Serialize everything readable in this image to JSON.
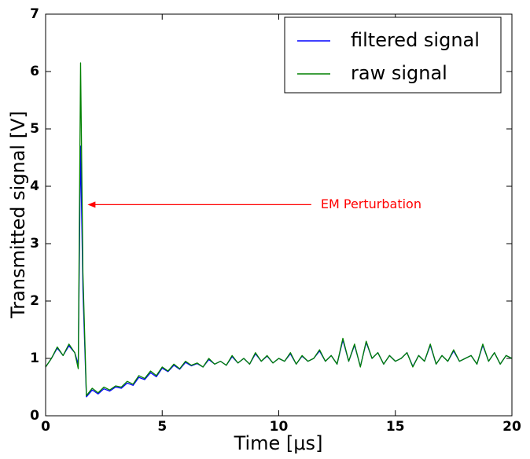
{
  "chart_data": {
    "type": "line",
    "xlabel": "Time [μs]",
    "ylabel": "Transmitted signal [V]",
    "x": [
      0,
      0.25,
      0.5,
      0.75,
      1,
      1.25,
      1.4,
      1.5,
      1.6,
      1.75,
      2,
      2.25,
      2.5,
      2.75,
      3,
      3.25,
      3.5,
      3.75,
      4,
      4.25,
      4.5,
      4.75,
      5,
      5.25,
      5.5,
      5.75,
      6,
      6.25,
      6.5,
      6.75,
      7,
      7.25,
      7.5,
      7.75,
      8,
      8.25,
      8.5,
      8.75,
      9,
      9.25,
      9.5,
      9.75,
      10,
      10.25,
      10.5,
      10.75,
      11,
      11.25,
      11.5,
      11.75,
      12,
      12.25,
      12.5,
      12.75,
      13,
      13.25,
      13.5,
      13.75,
      14,
      14.25,
      14.5,
      14.75,
      15,
      15.25,
      15.5,
      15.75,
      16,
      16.25,
      16.5,
      16.75,
      17,
      17.25,
      17.5,
      17.75,
      18,
      18.25,
      18.5,
      18.75,
      19,
      19.25,
      19.5,
      19.75,
      20
    ],
    "series": [
      {
        "name": "filtered signal",
        "color": "#0000ff",
        "values": [
          0.85,
          1.0,
          1.18,
          1.05,
          1.22,
          1.1,
          0.9,
          4.7,
          2.2,
          0.33,
          0.45,
          0.38,
          0.47,
          0.43,
          0.5,
          0.48,
          0.57,
          0.53,
          0.67,
          0.63,
          0.75,
          0.68,
          0.83,
          0.77,
          0.88,
          0.81,
          0.93,
          0.87,
          0.91,
          0.85,
          0.98,
          0.9,
          0.95,
          0.88,
          1.03,
          0.92,
          1.0,
          0.9,
          1.08,
          0.95,
          1.04,
          0.92,
          1.0,
          0.95,
          1.08,
          0.9,
          1.04,
          0.95,
          1.0,
          1.13,
          0.95,
          1.05,
          0.9,
          1.32,
          0.95,
          1.23,
          0.86,
          1.28,
          1.0,
          1.1,
          0.9,
          1.05,
          0.95,
          1.0,
          1.1,
          0.86,
          1.05,
          0.95,
          1.23,
          0.9,
          1.05,
          0.95,
          1.13,
          0.95,
          1.0,
          1.05,
          0.9,
          1.23,
          0.95,
          1.1,
          0.9,
          1.05,
          1.0
        ]
      },
      {
        "name": "raw signal",
        "color": "#008000",
        "values": [
          0.85,
          1.0,
          1.2,
          1.05,
          1.25,
          1.1,
          0.82,
          6.15,
          2.5,
          0.35,
          0.48,
          0.4,
          0.5,
          0.45,
          0.52,
          0.5,
          0.6,
          0.55,
          0.7,
          0.65,
          0.78,
          0.7,
          0.85,
          0.78,
          0.9,
          0.82,
          0.95,
          0.88,
          0.92,
          0.85,
          1.0,
          0.9,
          0.95,
          0.88,
          1.05,
          0.92,
          1.0,
          0.9,
          1.1,
          0.95,
          1.05,
          0.92,
          1.0,
          0.95,
          1.1,
          0.9,
          1.05,
          0.95,
          1.0,
          1.15,
          0.95,
          1.05,
          0.9,
          1.35,
          0.95,
          1.25,
          0.85,
          1.3,
          1.0,
          1.1,
          0.9,
          1.05,
          0.95,
          1.0,
          1.1,
          0.85,
          1.05,
          0.95,
          1.25,
          0.9,
          1.05,
          0.95,
          1.15,
          0.95,
          1.0,
          1.05,
          0.9,
          1.25,
          0.95,
          1.1,
          0.9,
          1.05,
          1.0
        ]
      }
    ],
    "xlim": [
      0,
      20
    ],
    "xticks": [
      0,
      5,
      10,
      15,
      20
    ],
    "ylim": [
      0,
      7
    ],
    "yticks": [
      0,
      1,
      2,
      3,
      4,
      5,
      6,
      7
    ],
    "legend": "upper right",
    "annotations": [
      {
        "text": "EM Perturbation",
        "color": "#ff0000",
        "xy": [
          1.8,
          3.68
        ],
        "xytext": [
          11.8,
          3.68
        ]
      }
    ]
  }
}
